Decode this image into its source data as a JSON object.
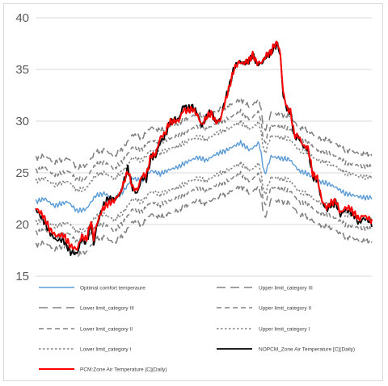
{
  "chart_data": {
    "type": "line",
    "title": "",
    "xlabel": "",
    "ylabel": "",
    "ylim": [
      15,
      40
    ],
    "yticks": [
      15,
      20,
      25,
      30,
      35,
      40
    ],
    "grid": "horizontal",
    "legend_position": "bottom",
    "n_points": 365,
    "series": [
      {
        "name": "Optimal comfort temperaure",
        "color": "#5b9bd5",
        "dash": "solid",
        "width": 1.4,
        "anchors": [
          [
            0,
            22.2
          ],
          [
            10,
            22.5
          ],
          [
            20,
            21.8
          ],
          [
            35,
            22.2
          ],
          [
            45,
            21.3
          ],
          [
            55,
            21.5
          ],
          [
            65,
            22.8
          ],
          [
            75,
            23.0
          ],
          [
            85,
            22.4
          ],
          [
            95,
            23.2
          ],
          [
            105,
            24.5
          ],
          [
            115,
            24.2
          ],
          [
            125,
            25.2
          ],
          [
            135,
            24.9
          ],
          [
            145,
            25.3
          ],
          [
            155,
            25.6
          ],
          [
            165,
            26.1
          ],
          [
            175,
            26.5
          ],
          [
            185,
            26.2
          ],
          [
            195,
            26.8
          ],
          [
            205,
            27.1
          ],
          [
            215,
            27.6
          ],
          [
            222,
            27.9
          ],
          [
            232,
            27.2
          ],
          [
            242,
            27.9
          ],
          [
            248,
            24.8
          ],
          [
            255,
            26.6
          ],
          [
            265,
            26.4
          ],
          [
            275,
            26.3
          ],
          [
            285,
            25.2
          ],
          [
            295,
            24.9
          ],
          [
            305,
            24.2
          ],
          [
            315,
            24.0
          ],
          [
            325,
            23.6
          ],
          [
            335,
            23.0
          ],
          [
            345,
            22.8
          ],
          [
            355,
            22.6
          ],
          [
            364,
            22.6
          ]
        ]
      },
      {
        "name": "Upper limit_category III",
        "color": "#808080",
        "dash": "11,6",
        "width": 1.5,
        "offset": 4.2
      },
      {
        "name": "Lower limit_category III",
        "color": "#808080",
        "dash": "11,6",
        "width": 1.5,
        "offset": -4.2
      },
      {
        "name": "Upper limit_category II",
        "color": "#808080",
        "dash": "6,4",
        "width": 1.5,
        "offset": 3.0
      },
      {
        "name": "Lower limit_category II",
        "color": "#808080",
        "dash": "6,4",
        "width": 1.5,
        "offset": -3.0
      },
      {
        "name": "Upper limit_category I",
        "color": "#808080",
        "dash": "2.5,2.5",
        "width": 1.5,
        "offset": 2.0
      },
      {
        "name": "Lower limit_category I",
        "color": "#808080",
        "dash": "2.5,2.5",
        "width": 1.5,
        "offset": -2.0
      },
      {
        "name": "NOPCM_Zone Air Temperature [C](Daily)",
        "color": "#000000",
        "dash": "solid",
        "width": 1.8,
        "anchors": [
          [
            0,
            21.5
          ],
          [
            8,
            20.5
          ],
          [
            15,
            19.3
          ],
          [
            22,
            18.5
          ],
          [
            30,
            18.5
          ],
          [
            38,
            17.3
          ],
          [
            45,
            17.2
          ],
          [
            50,
            18.6
          ],
          [
            55,
            18.2
          ],
          [
            60,
            20.0
          ],
          [
            63,
            18.0
          ],
          [
            66,
            19.7
          ],
          [
            72,
            21.6
          ],
          [
            78,
            22.5
          ],
          [
            85,
            22.4
          ],
          [
            92,
            23.0
          ],
          [
            96,
            24.3
          ],
          [
            100,
            25.5
          ],
          [
            105,
            23.5
          ],
          [
            110,
            23.0
          ],
          [
            115,
            24.5
          ],
          [
            120,
            24.4
          ],
          [
            125,
            26.5
          ],
          [
            130,
            26.6
          ],
          [
            135,
            28.0
          ],
          [
            140,
            28.5
          ],
          [
            145,
            29.8
          ],
          [
            150,
            30.2
          ],
          [
            155,
            30.2
          ],
          [
            160,
            31.5
          ],
          [
            165,
            31.2
          ],
          [
            170,
            31.4
          ],
          [
            175,
            30.8
          ],
          [
            180,
            29.5
          ],
          [
            185,
            30.4
          ],
          [
            190,
            31.0
          ],
          [
            195,
            29.9
          ],
          [
            200,
            30.2
          ],
          [
            205,
            32.0
          ],
          [
            210,
            33.5
          ],
          [
            215,
            35.2
          ],
          [
            220,
            35.8
          ],
          [
            225,
            35.6
          ],
          [
            230,
            35.7
          ],
          [
            235,
            36.4
          ],
          [
            240,
            35.5
          ],
          [
            245,
            35.6
          ],
          [
            250,
            36.3
          ],
          [
            255,
            36.6
          ],
          [
            258,
            37.1
          ],
          [
            262,
            37.4
          ],
          [
            265,
            36.3
          ],
          [
            268,
            32.5
          ],
          [
            272,
            31.2
          ],
          [
            276,
            30.9
          ],
          [
            280,
            28.5
          ],
          [
            285,
            28.4
          ],
          [
            290,
            27.5
          ],
          [
            295,
            27.3
          ],
          [
            300,
            24.6
          ],
          [
            305,
            24.3
          ],
          [
            310,
            22.2
          ],
          [
            315,
            21.4
          ],
          [
            320,
            21.9
          ],
          [
            325,
            22.1
          ],
          [
            330,
            20.9
          ],
          [
            335,
            21.4
          ],
          [
            340,
            21.3
          ],
          [
            345,
            20.9
          ],
          [
            350,
            20.1
          ],
          [
            355,
            20.6
          ],
          [
            360,
            20.4
          ],
          [
            364,
            20.1
          ]
        ]
      },
      {
        "name": "PCM:Zone Air Temperature [C](Daily)",
        "color": "#ff0000",
        "dash": "solid",
        "width": 2.0,
        "anchors": [
          [
            0,
            21.6
          ],
          [
            8,
            20.9
          ],
          [
            15,
            19.6
          ],
          [
            22,
            18.9
          ],
          [
            30,
            19.0
          ],
          [
            38,
            17.9
          ],
          [
            45,
            17.6
          ],
          [
            50,
            18.9
          ],
          [
            55,
            18.5
          ],
          [
            60,
            20.3
          ],
          [
            63,
            18.6
          ],
          [
            66,
            20.0
          ],
          [
            72,
            21.4
          ],
          [
            78,
            22.0
          ],
          [
            85,
            22.3
          ],
          [
            92,
            23.1
          ],
          [
            96,
            24.2
          ],
          [
            100,
            25.2
          ],
          [
            105,
            23.6
          ],
          [
            110,
            23.3
          ],
          [
            115,
            24.7
          ],
          [
            120,
            24.8
          ],
          [
            125,
            26.7
          ],
          [
            130,
            26.8
          ],
          [
            135,
            28.4
          ],
          [
            140,
            28.8
          ],
          [
            145,
            29.9
          ],
          [
            150,
            30.0
          ],
          [
            155,
            30.0
          ],
          [
            160,
            31.1
          ],
          [
            165,
            31.0
          ],
          [
            170,
            31.2
          ],
          [
            175,
            30.6
          ],
          [
            180,
            29.6
          ],
          [
            185,
            30.4
          ],
          [
            190,
            30.8
          ],
          [
            195,
            29.9
          ],
          [
            200,
            30.1
          ],
          [
            205,
            31.8
          ],
          [
            210,
            33.4
          ],
          [
            215,
            35.1
          ],
          [
            220,
            35.7
          ],
          [
            225,
            35.6
          ],
          [
            230,
            35.8
          ],
          [
            235,
            36.4
          ],
          [
            240,
            35.6
          ],
          [
            245,
            35.7
          ],
          [
            250,
            36.4
          ],
          [
            255,
            36.7
          ],
          [
            258,
            37.3
          ],
          [
            262,
            37.6
          ],
          [
            265,
            36.4
          ],
          [
            268,
            32.8
          ],
          [
            272,
            31.3
          ],
          [
            276,
            30.9
          ],
          [
            280,
            28.7
          ],
          [
            285,
            28.5
          ],
          [
            290,
            27.6
          ],
          [
            295,
            27.4
          ],
          [
            300,
            24.9
          ],
          [
            305,
            24.5
          ],
          [
            310,
            22.3
          ],
          [
            315,
            21.6
          ],
          [
            320,
            22.1
          ],
          [
            325,
            22.3
          ],
          [
            330,
            21.1
          ],
          [
            335,
            21.6
          ],
          [
            340,
            21.6
          ],
          [
            345,
            21.1
          ],
          [
            350,
            20.5
          ],
          [
            355,
            20.9
          ],
          [
            360,
            20.6
          ],
          [
            364,
            20.3
          ]
        ]
      }
    ]
  }
}
